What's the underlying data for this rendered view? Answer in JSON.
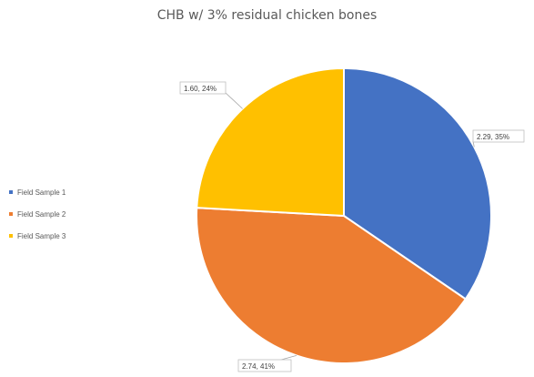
{
  "chart_data": {
    "type": "pie",
    "title": "CHB w/ 3% residual chicken bones",
    "categories": [
      "Field Sample 1",
      "Field Sample 2",
      "Field Sample 3"
    ],
    "values": [
      2.29,
      2.74,
      1.6
    ],
    "percent_labels": [
      "35%",
      "41%",
      "24%"
    ],
    "data_labels": [
      "2.29, 35%",
      "2.74, 41%",
      "1.60, 24%"
    ],
    "colors": [
      "#4472C4",
      "#ED7D31",
      "#FFC000"
    ],
    "legend_position": "left"
  }
}
